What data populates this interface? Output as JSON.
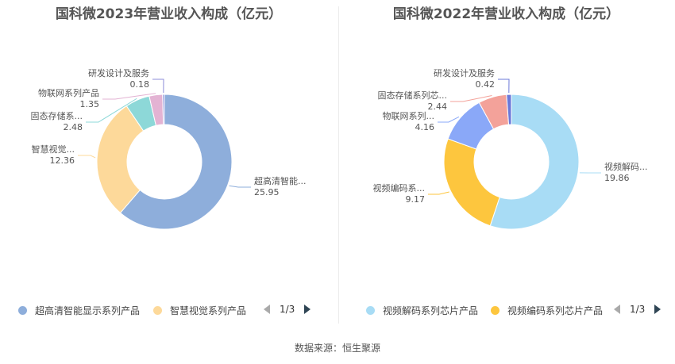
{
  "source": "数据来源：恒生聚源",
  "chart_data": [
    {
      "type": "pie",
      "title": "国科微2023年营业收入构成（亿元）",
      "categories": [
        "超高清智能显示系列产品",
        "智慧视觉系列产品",
        "固态存储系列产品",
        "物联网系列产品",
        "研发设计及服务"
      ],
      "labels": [
        "超高清智能...",
        "智慧视觉...",
        "固态存储系...",
        "物联网系列产品",
        "研发设计及服务"
      ],
      "values": [
        25.95,
        12.36,
        2.48,
        1.35,
        0.18
      ],
      "value_labels": [
        "25.95",
        "12.36",
        "2.48",
        "1.35",
        "0.18"
      ],
      "colors": [
        "#8eaedb",
        "#fdd99a",
        "#8dd8d8",
        "#e3b3d3",
        "#8c8cd8"
      ],
      "legend": {
        "position": "bottom",
        "items": [
          "超高清智能显示系列产品",
          "智慧视觉系列产品"
        ],
        "item_colors": [
          "#8eaedb",
          "#fdd99a"
        ],
        "page": "1/3"
      }
    },
    {
      "type": "pie",
      "title": "国科微2022年营业收入构成（亿元）",
      "categories": [
        "视频解码系列芯片产品",
        "视频编码系列芯片产品",
        "物联网系列芯片产品",
        "固态存储系列芯片产品",
        "研发设计及服务"
      ],
      "labels": [
        "视频解码...",
        "视频编码系...",
        "物联网系列...",
        "固态存储系列芯...",
        "研发设计及服务"
      ],
      "values": [
        19.86,
        9.17,
        4.16,
        2.44,
        0.42
      ],
      "value_labels": [
        "19.86",
        "9.17",
        "4.16",
        "2.44",
        "0.42"
      ],
      "colors": [
        "#a8dcf5",
        "#fdc63e",
        "#8aa8f8",
        "#f3a29a",
        "#6b78d8"
      ],
      "legend": {
        "position": "bottom",
        "items": [
          "视频解码系列芯片产品",
          "视频编码系列芯片产品"
        ],
        "item_colors": [
          "#a8dcf5",
          "#fdc63e"
        ],
        "page": "1/3"
      }
    }
  ]
}
